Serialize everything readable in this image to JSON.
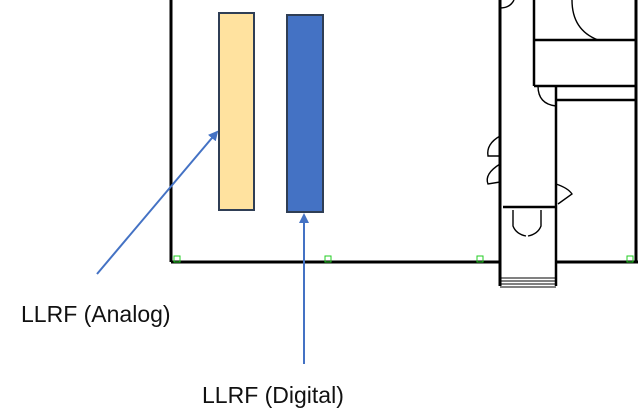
{
  "diagram": {
    "labels": {
      "analog": "LLRF (Analog)",
      "digital": "LLRF (Digital)"
    },
    "colors": {
      "analog_rack_fill": "#FFE29F",
      "digital_rack_fill": "#4472C4",
      "rack_outline": "#2F3E55",
      "arrow": "#4472C4",
      "wall": "#000000",
      "marker": "#22CC22"
    }
  }
}
